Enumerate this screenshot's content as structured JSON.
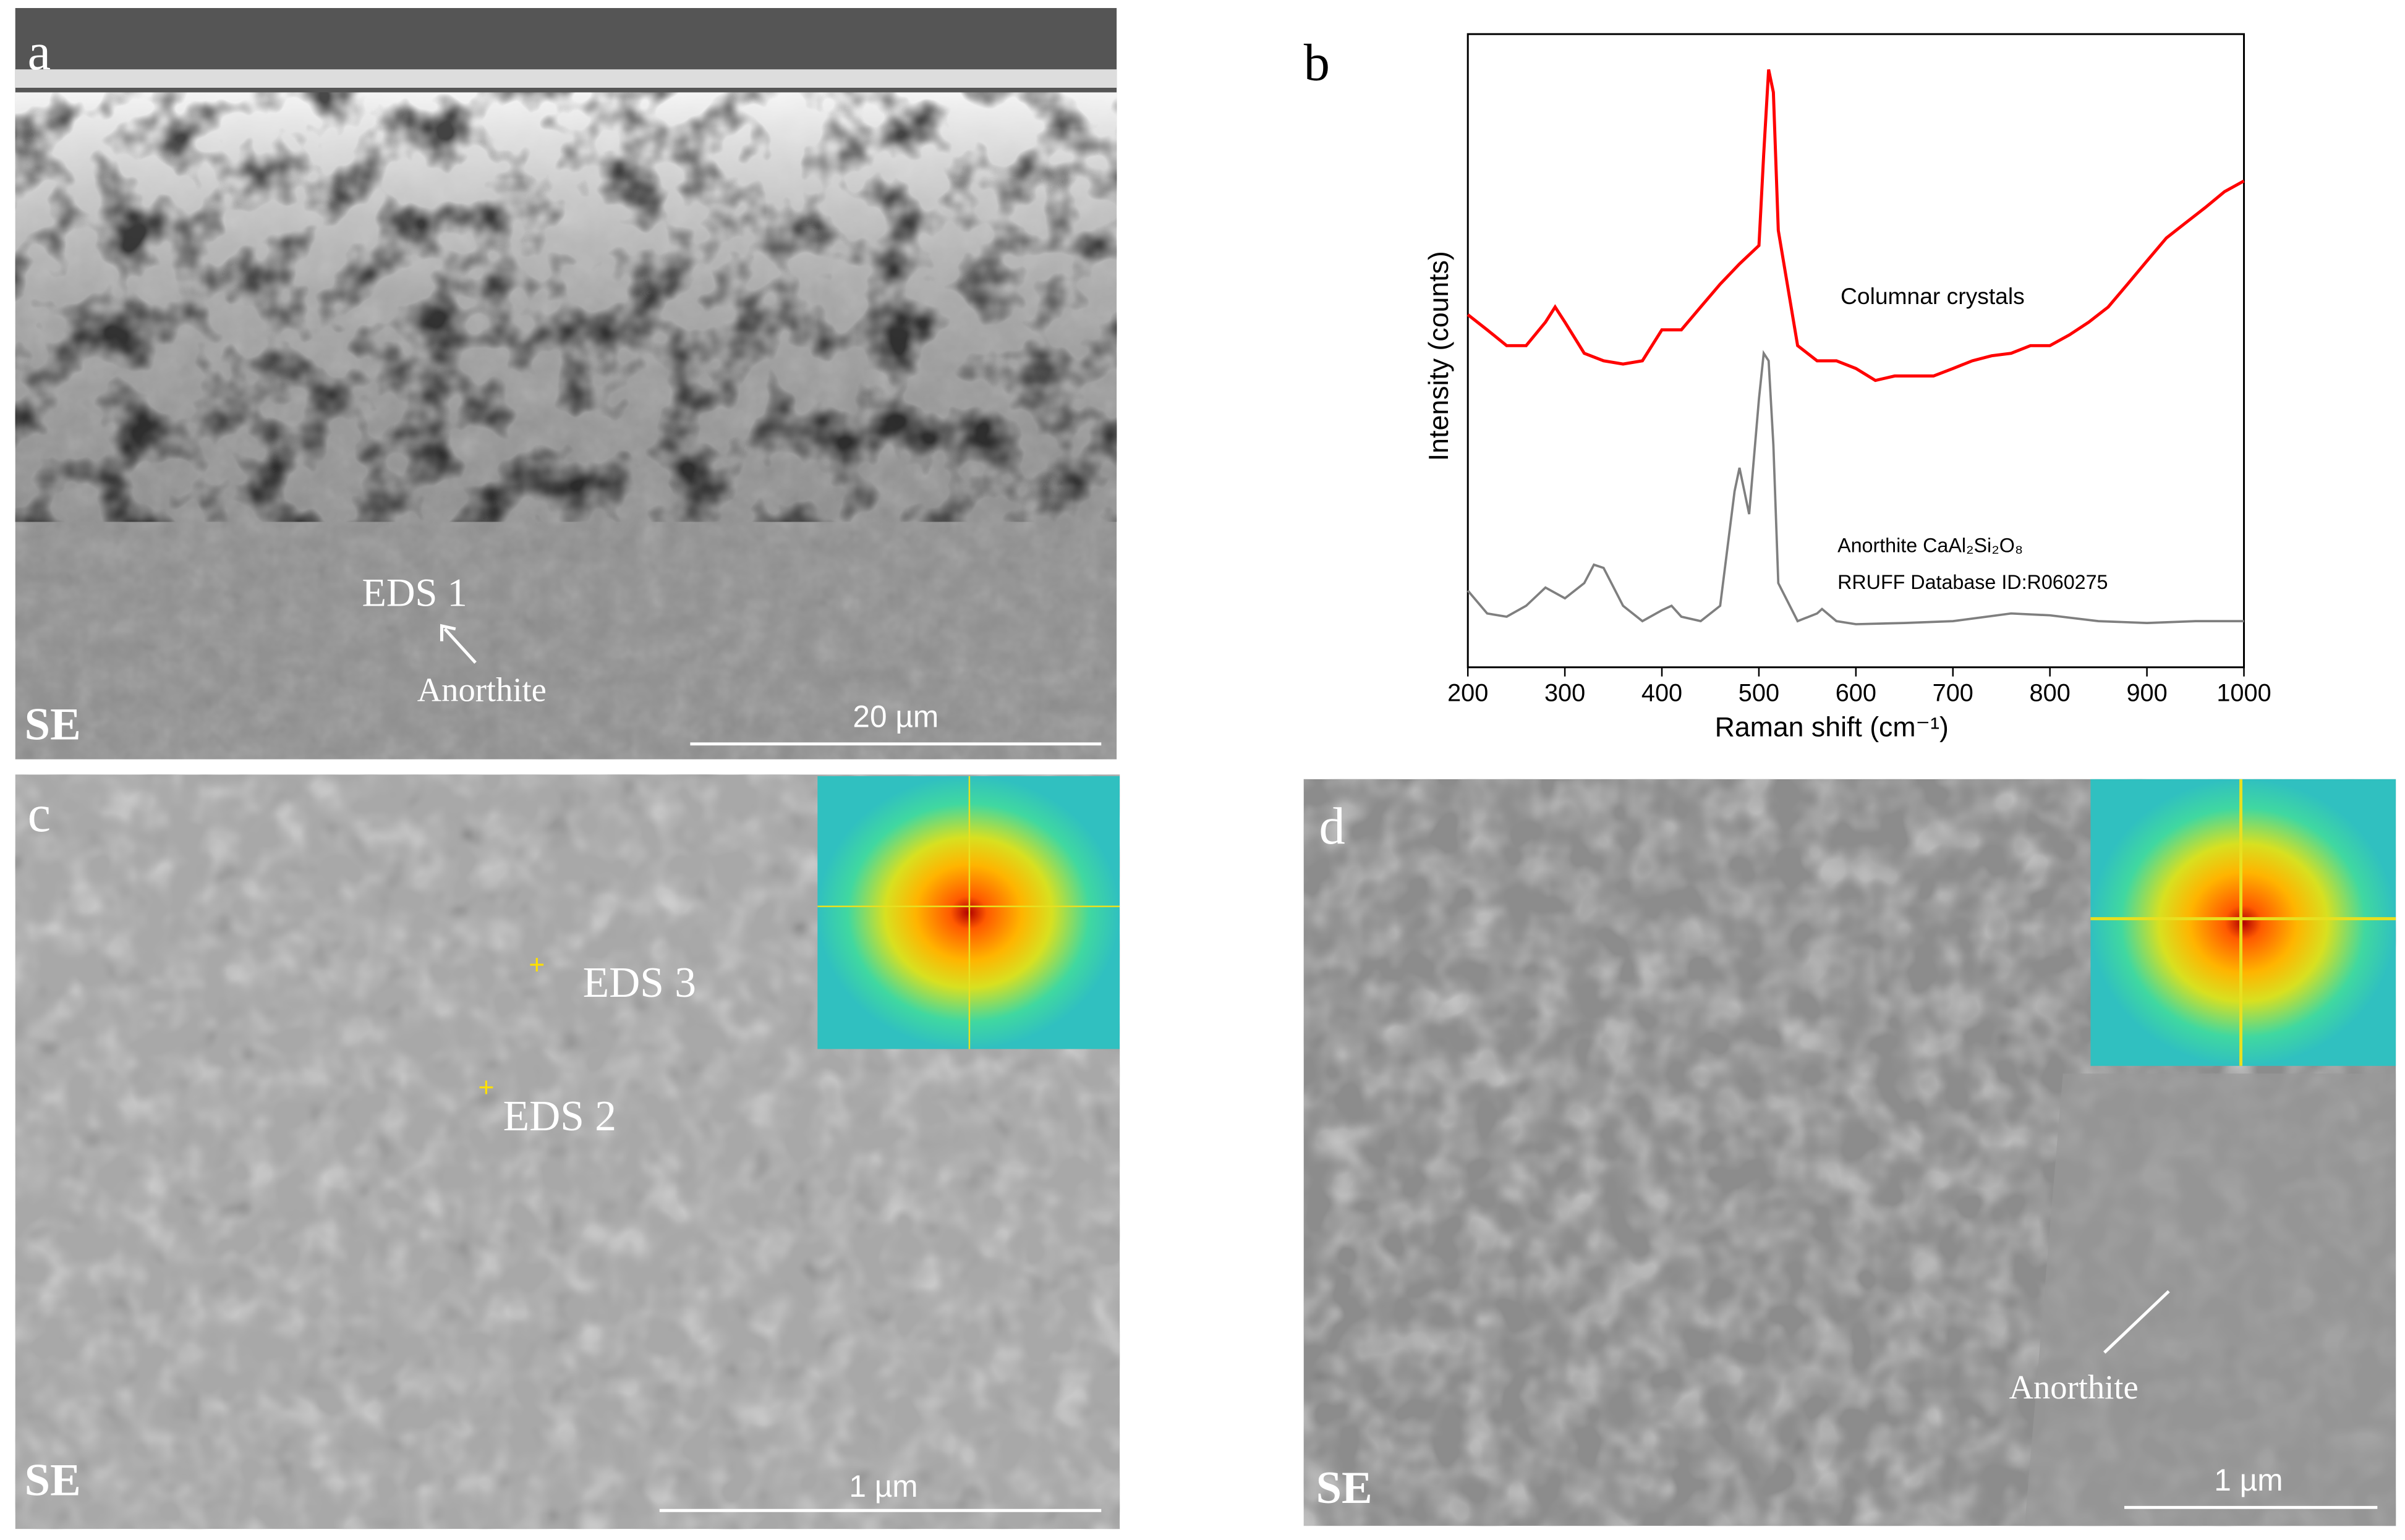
{
  "panels": [
    {
      "label": "a",
      "detector": "SE",
      "scale_bar": "20 µm",
      "annotations": [
        "EDS 1",
        "Anorthite"
      ]
    },
    {
      "label": "c",
      "detector": "SE",
      "scale_bar": "1 µm",
      "annotations": [
        "EDS 3",
        "EDS 2"
      ]
    },
    {
      "label": "d",
      "detector": "SE",
      "scale_bar": "1 µm",
      "annotations": [
        "Anorthite"
      ]
    }
  ],
  "chart_data": {
    "type": "line",
    "label": "b",
    "x_label": "Raman shift (cm⁻¹)",
    "y_label": "Intensity (counts)",
    "annotations": [
      "Columnar crystals",
      "Anorthite CaAl₂Si₂O₈",
      "RRUFF Database  ID:R060275"
    ],
    "xlim": [
      200,
      1000
    ],
    "xticks": [
      200,
      300,
      400,
      500,
      600,
      700,
      800,
      900,
      1000
    ],
    "ylim": [
      0,
      100
    ],
    "series": [
      {
        "name": "Columnar crystals",
        "color": "#ff0000",
        "x": [
          200,
          220,
          240,
          260,
          280,
          290,
          300,
          320,
          340,
          360,
          380,
          400,
          420,
          440,
          460,
          480,
          500,
          505,
          510,
          515,
          520,
          540,
          560,
          580,
          600,
          620,
          640,
          660,
          680,
          700,
          720,
          740,
          760,
          780,
          800,
          820,
          840,
          860,
          880,
          900,
          920,
          940,
          960,
          980,
          1000
        ],
        "values": [
          55.7,
          53.3,
          50.8,
          50.8,
          54.5,
          56.9,
          54.5,
          49.6,
          48.4,
          47.9,
          48.4,
          53.3,
          53.3,
          56.9,
          60.5,
          63.7,
          66.6,
          81.1,
          94.4,
          90.8,
          69.0,
          50.8,
          48.4,
          48.4,
          47.2,
          45.3,
          46.0,
          46.0,
          46.0,
          47.2,
          48.4,
          49.2,
          49.6,
          50.8,
          50.8,
          52.5,
          54.5,
          56.9,
          60.5,
          64.2,
          67.8,
          70.2,
          72.6,
          75.1,
          76.8
        ]
      },
      {
        "name": "Anorthite",
        "color": "#7f7f7f",
        "x": [
          200,
          220,
          240,
          260,
          280,
          300,
          320,
          330,
          340,
          360,
          380,
          400,
          410,
          420,
          440,
          460,
          475,
          480,
          485,
          490,
          500,
          505,
          510,
          515,
          520,
          540,
          560,
          565,
          580,
          600,
          650,
          700,
          760,
          800,
          850,
          900,
          950,
          1000
        ],
        "values": [
          12.1,
          8.5,
          8.0,
          9.7,
          12.6,
          10.9,
          13.3,
          16.2,
          15.7,
          9.7,
          7.3,
          9.0,
          9.7,
          8.0,
          7.3,
          9.7,
          27.8,
          31.5,
          27.8,
          24.2,
          42.4,
          49.6,
          48.4,
          35.1,
          13.3,
          7.3,
          8.5,
          9.2,
          7.3,
          6.8,
          7.0,
          7.3,
          8.5,
          8.2,
          7.3,
          7.0,
          7.3,
          7.3
        ]
      }
    ]
  }
}
